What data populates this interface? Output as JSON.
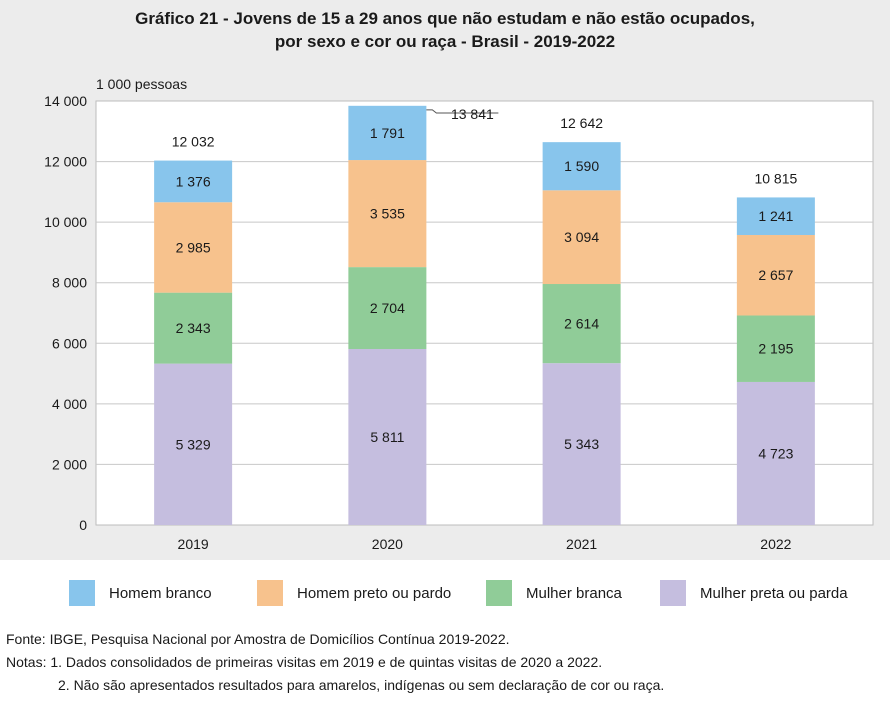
{
  "chart_data": {
    "type": "bar",
    "stacked": true,
    "title_line1": "Gráfico 21 - Jovens de 15 a 29 anos que não estudam e não estão ocupados,",
    "title_line2": "por sexo e cor ou raça - Brasil - 2019-2022",
    "unit_label": "1 000 pessoas",
    "categories": [
      "2019",
      "2020",
      "2021",
      "2022"
    ],
    "series": [
      {
        "name": "Mulher preta ou parda",
        "color": "#c5bedf",
        "values": [
          5329,
          5811,
          5343,
          4723
        ],
        "labels": [
          "5 329",
          "5 811",
          "5 343",
          "4 723"
        ]
      },
      {
        "name": "Mulher branca",
        "color": "#90cc98",
        "values": [
          2343,
          2704,
          2614,
          2195
        ],
        "labels": [
          "2 343",
          "2 704",
          "2 614",
          "2 195"
        ]
      },
      {
        "name": "Homem preto ou pardo",
        "color": "#f7c28d",
        "values": [
          2985,
          3535,
          3094,
          2657
        ],
        "labels": [
          "2 985",
          "3 535",
          "3 094",
          "2 657"
        ]
      },
      {
        "name": "Homem branco",
        "color": "#88c5ec",
        "values": [
          1376,
          1791,
          1590,
          1241
        ],
        "labels": [
          "1 376",
          "1 791",
          "1 590",
          "1 241"
        ]
      }
    ],
    "totals": [
      12032,
      13841,
      12642,
      10815
    ],
    "total_labels": [
      "12 032",
      "13 841",
      "12 642",
      "10 815"
    ],
    "ylim": [
      0,
      14000
    ],
    "yticks": [
      0,
      2000,
      4000,
      6000,
      8000,
      10000,
      12000,
      14000
    ],
    "ytick_labels": [
      "0",
      "2 000",
      "4 000",
      "6 000",
      "8 000",
      "10 000",
      "12 000",
      "14 000"
    ],
    "legend_order": [
      "Homem branco",
      "Homem preto ou pardo",
      "Mulher branca",
      "Mulher preta ou parda"
    ],
    "grid": true
  },
  "footer": {
    "source": "Fonte: IBGE, Pesquisa Nacional por Amostra de Domicílios Contínua 2019-2022.",
    "note1": "Notas: 1. Dados consolidados de primeiras visitas em 2019 e de quintas visitas de 2020 a 2022.",
    "note2": "2. Não são apresentados resultados para amarelos, indígenas ou sem declaração de cor ou raça."
  }
}
